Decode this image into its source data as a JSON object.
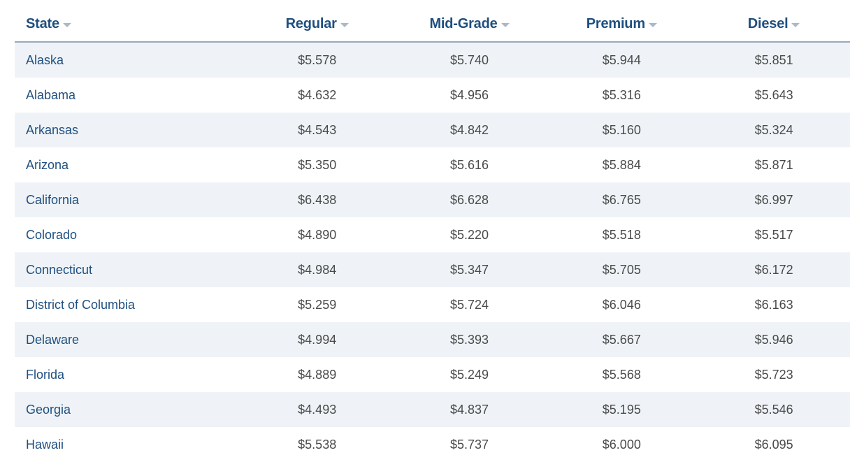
{
  "table": {
    "headers": [
      {
        "label": "State"
      },
      {
        "label": "Regular"
      },
      {
        "label": "Mid-Grade"
      },
      {
        "label": "Premium"
      },
      {
        "label": "Diesel"
      }
    ],
    "rows": [
      {
        "state": "Alaska",
        "regular": "$5.578",
        "midgrade": "$5.740",
        "premium": "$5.944",
        "diesel": "$5.851"
      },
      {
        "state": "Alabama",
        "regular": "$4.632",
        "midgrade": "$4.956",
        "premium": "$5.316",
        "diesel": "$5.643"
      },
      {
        "state": "Arkansas",
        "regular": "$4.543",
        "midgrade": "$4.842",
        "premium": "$5.160",
        "diesel": "$5.324"
      },
      {
        "state": "Arizona",
        "regular": "$5.350",
        "midgrade": "$5.616",
        "premium": "$5.884",
        "diesel": "$5.871"
      },
      {
        "state": "California",
        "regular": "$6.438",
        "midgrade": "$6.628",
        "premium": "$6.765",
        "diesel": "$6.997"
      },
      {
        "state": "Colorado",
        "regular": "$4.890",
        "midgrade": "$5.220",
        "premium": "$5.518",
        "diesel": "$5.517"
      },
      {
        "state": "Connecticut",
        "regular": "$4.984",
        "midgrade": "$5.347",
        "premium": "$5.705",
        "diesel": "$6.172"
      },
      {
        "state": "District of Columbia",
        "regular": "$5.259",
        "midgrade": "$5.724",
        "premium": "$6.046",
        "diesel": "$6.163"
      },
      {
        "state": "Delaware",
        "regular": "$4.994",
        "midgrade": "$5.393",
        "premium": "$5.667",
        "diesel": "$5.946"
      },
      {
        "state": "Florida",
        "regular": "$4.889",
        "midgrade": "$5.249",
        "premium": "$5.568",
        "diesel": "$5.723"
      },
      {
        "state": "Georgia",
        "regular": "$4.493",
        "midgrade": "$4.837",
        "premium": "$5.195",
        "diesel": "$5.546"
      },
      {
        "state": "Hawaii",
        "regular": "$5.538",
        "midgrade": "$5.737",
        "premium": "$6.000",
        "diesel": "$6.095"
      }
    ]
  },
  "colors": {
    "header_text": "#1f4f7f",
    "state_text": "#1f4f7f",
    "value_text": "#4a4a4a",
    "row_stripe": "#eff3f7",
    "sort_caret": "#aab8c8"
  },
  "icons": {
    "sort": "chevron-down-icon"
  }
}
